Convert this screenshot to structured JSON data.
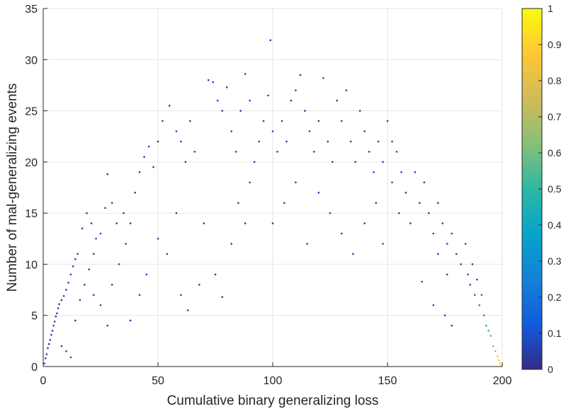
{
  "chart_data": {
    "type": "scatter",
    "title": "",
    "xlabel": "Cumulative binary generalizing loss",
    "ylabel": "Number of mal-generalizing events",
    "xlim": [
      0,
      200
    ],
    "ylim": [
      0,
      35
    ],
    "x_ticks": [
      0,
      50,
      100,
      150,
      200
    ],
    "x_tick_labels": [
      "0",
      "50",
      "100",
      "150",
      "200"
    ],
    "y_ticks": [
      0,
      5,
      10,
      15,
      20,
      25,
      30,
      35
    ],
    "y_tick_labels": [
      "0",
      "5",
      "10",
      "15",
      "20",
      "25",
      "30",
      "35"
    ],
    "grid": true,
    "colorbar": {
      "colormap": "parula",
      "limits": [
        0,
        1
      ],
      "ticks": [
        0,
        0.1,
        0.2,
        0.3,
        0.4,
        0.5,
        0.6,
        0.7,
        0.8,
        0.9,
        1
      ],
      "tick_labels": [
        "0",
        "0.1",
        "0.2",
        "0.3",
        "0.4",
        "0.5",
        "0.6",
        "0.7",
        "0.8",
        "0.9",
        "1"
      ],
      "colors": [
        "#352a87",
        "#0f5cdd",
        "#1481d6",
        "#06a4ca",
        "#2eb7a4",
        "#87bf77",
        "#d1bb59",
        "#fec832",
        "#f9fb0e"
      ]
    },
    "point_color_default": "#3b2fb0",
    "series": [
      {
        "points": [
          [
            0.5,
            0.3
          ],
          [
            1,
            0.8
          ],
          [
            1.5,
            1.2
          ],
          [
            2,
            1.8
          ],
          [
            2.5,
            2.2
          ],
          [
            3,
            2.6
          ],
          [
            3.5,
            3.1
          ],
          [
            4,
            3.5
          ],
          [
            4.5,
            4
          ],
          [
            5,
            4.4
          ],
          [
            5.5,
            4.9
          ],
          [
            6,
            5.2
          ],
          [
            6.5,
            5.7
          ],
          [
            7,
            6.1
          ],
          [
            8,
            6.5
          ],
          [
            9,
            6.9
          ],
          [
            10,
            7.5
          ],
          [
            11,
            8.2
          ],
          [
            12,
            9
          ],
          [
            13,
            9.8
          ],
          [
            14,
            10.5
          ],
          [
            15,
            11
          ],
          [
            8,
            2
          ],
          [
            10,
            1.5
          ],
          [
            12,
            0.9
          ],
          [
            14,
            4.5
          ],
          [
            16,
            6.5
          ],
          [
            18,
            8
          ],
          [
            20,
            9.5
          ],
          [
            22,
            11
          ],
          [
            17,
            13.5
          ],
          [
            19,
            15
          ],
          [
            21,
            14
          ],
          [
            23,
            12.5
          ],
          [
            25,
            13
          ],
          [
            27,
            15.5
          ],
          [
            28,
            18.8
          ],
          [
            30,
            16
          ],
          [
            32,
            14
          ],
          [
            35,
            15
          ],
          [
            22,
            7
          ],
          [
            25,
            6
          ],
          [
            28,
            4
          ],
          [
            30,
            8
          ],
          [
            33,
            10
          ],
          [
            36,
            12
          ],
          [
            38,
            14
          ],
          [
            40,
            17
          ],
          [
            42,
            19
          ],
          [
            44,
            20.5
          ],
          [
            46,
            21.5
          ],
          [
            48,
            19.5
          ],
          [
            50,
            22
          ],
          [
            52,
            24
          ],
          [
            55,
            25.5
          ],
          [
            58,
            23
          ],
          [
            60,
            22
          ],
          [
            62,
            20
          ],
          [
            64,
            24
          ],
          [
            66,
            21
          ],
          [
            38,
            4.5
          ],
          [
            42,
            7
          ],
          [
            45,
            9
          ],
          [
            50,
            12.5
          ],
          [
            54,
            11
          ],
          [
            58,
            15
          ],
          [
            60,
            7
          ],
          [
            63,
            5.5
          ],
          [
            68,
            8
          ],
          [
            70,
            14
          ],
          [
            72,
            28
          ],
          [
            74,
            27.8
          ],
          [
            76,
            26
          ],
          [
            78,
            25
          ],
          [
            80,
            27.3
          ],
          [
            82,
            23
          ],
          [
            84,
            21
          ],
          [
            86,
            25
          ],
          [
            88,
            28.6
          ],
          [
            90,
            26
          ],
          [
            75,
            9
          ],
          [
            78,
            6.8
          ],
          [
            82,
            12
          ],
          [
            85,
            16
          ],
          [
            88,
            14
          ],
          [
            90,
            18
          ],
          [
            92,
            20
          ],
          [
            94,
            22
          ],
          [
            96,
            24
          ],
          [
            98,
            26.5
          ],
          [
            99,
            31.9
          ],
          [
            100,
            23
          ],
          [
            102,
            21
          ],
          [
            104,
            24
          ],
          [
            106,
            22
          ],
          [
            108,
            26
          ],
          [
            110,
            27
          ],
          [
            112,
            28.5
          ],
          [
            114,
            25
          ],
          [
            116,
            23
          ],
          [
            118,
            21
          ],
          [
            120,
            24
          ],
          [
            122,
            28.2
          ],
          [
            124,
            22
          ],
          [
            126,
            20
          ],
          [
            128,
            26
          ],
          [
            130,
            24
          ],
          [
            132,
            27
          ],
          [
            134,
            22
          ],
          [
            136,
            20
          ],
          [
            138,
            25
          ],
          [
            140,
            23
          ],
          [
            142,
            21
          ],
          [
            144,
            19
          ],
          [
            146,
            22
          ],
          [
            148,
            20
          ],
          [
            150,
            24
          ],
          [
            152,
            22
          ],
          [
            154,
            21
          ],
          [
            156,
            19
          ],
          [
            100,
            14
          ],
          [
            105,
            16
          ],
          [
            110,
            18
          ],
          [
            115,
            12
          ],
          [
            120,
            17
          ],
          [
            125,
            15
          ],
          [
            130,
            13
          ],
          [
            135,
            11
          ],
          [
            140,
            14
          ],
          [
            145,
            16
          ],
          [
            148,
            12
          ],
          [
            152,
            18
          ],
          [
            155,
            15
          ],
          [
            158,
            17
          ],
          [
            160,
            14
          ],
          [
            162,
            19
          ],
          [
            164,
            16
          ],
          [
            166,
            18
          ],
          [
            168,
            15
          ],
          [
            170,
            13
          ],
          [
            172,
            16
          ],
          [
            174,
            14
          ],
          [
            176,
            12
          ],
          [
            178,
            13
          ],
          [
            180,
            11
          ],
          [
            182,
            10
          ],
          [
            184,
            12
          ],
          [
            185,
            9
          ],
          [
            186,
            8
          ],
          [
            187,
            10
          ],
          [
            188,
            7
          ],
          [
            189,
            8.5
          ],
          [
            190,
            6
          ],
          [
            191,
            7
          ],
          [
            192,
            5
          ],
          [
            193,
            4
          ],
          [
            194,
            3.5
          ],
          [
            195,
            3
          ],
          [
            196,
            2
          ],
          [
            197,
            1.5
          ],
          [
            198,
            1
          ],
          [
            198.5,
            0.6
          ],
          [
            199,
            0.3
          ],
          [
            199.5,
            0.1
          ],
          [
            165,
            8.3
          ],
          [
            170,
            6
          ],
          [
            175,
            5
          ],
          [
            178,
            4
          ],
          [
            176,
            9
          ],
          [
            172,
            11
          ]
        ]
      }
    ]
  }
}
